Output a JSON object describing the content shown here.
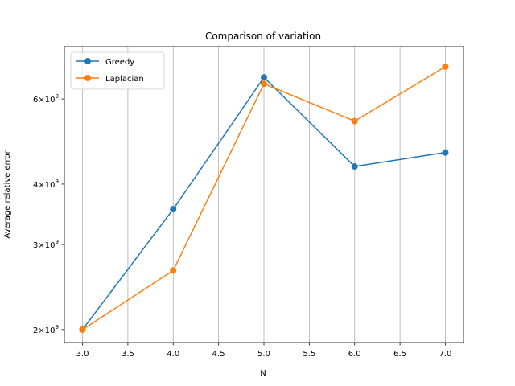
{
  "chart_data": {
    "type": "line",
    "title": "Comparison of variation",
    "xlabel": "N",
    "ylabel": "Average relative error",
    "x": [
      3.0,
      4.0,
      5.0,
      6.0,
      7.0
    ],
    "x_ticks": [
      "3.0",
      "3.5",
      "4.0",
      "4.5",
      "5.0",
      "5.5",
      "6.0",
      "6.5",
      "7.0"
    ],
    "x_tick_values": [
      3.0,
      3.5,
      4.0,
      4.5,
      5.0,
      5.5,
      6.0,
      6.5,
      7.0
    ],
    "xlim": [
      2.8,
      7.2
    ],
    "y_scale": "log",
    "ylim": [
      1880000000.0,
      7700000000.0
    ],
    "y_ticks": [
      {
        "value": 2000000000.0,
        "mantissa": "2",
        "base": "10",
        "exp": "9"
      },
      {
        "value": 3000000000.0,
        "mantissa": "3",
        "base": "10",
        "exp": "9"
      },
      {
        "value": 4000000000.0,
        "mantissa": "4",
        "base": "10",
        "exp": "9"
      },
      {
        "value": 6000000000.0,
        "mantissa": "6",
        "base": "10",
        "exp": "9"
      }
    ],
    "times_sign": "×",
    "grid": "vertical",
    "legend_position": "top-left",
    "series": [
      {
        "name": "Greedy",
        "color": "#1f77b4",
        "values": [
          2000000000.0,
          3550000000.0,
          6650000000.0,
          4350000000.0,
          4650000000.0
        ]
      },
      {
        "name": "Laplacian",
        "color": "#ff7f0e",
        "values": [
          2000000000.0,
          2650000000.0,
          6450000000.0,
          5400000000.0,
          7000000000.0
        ]
      }
    ]
  }
}
